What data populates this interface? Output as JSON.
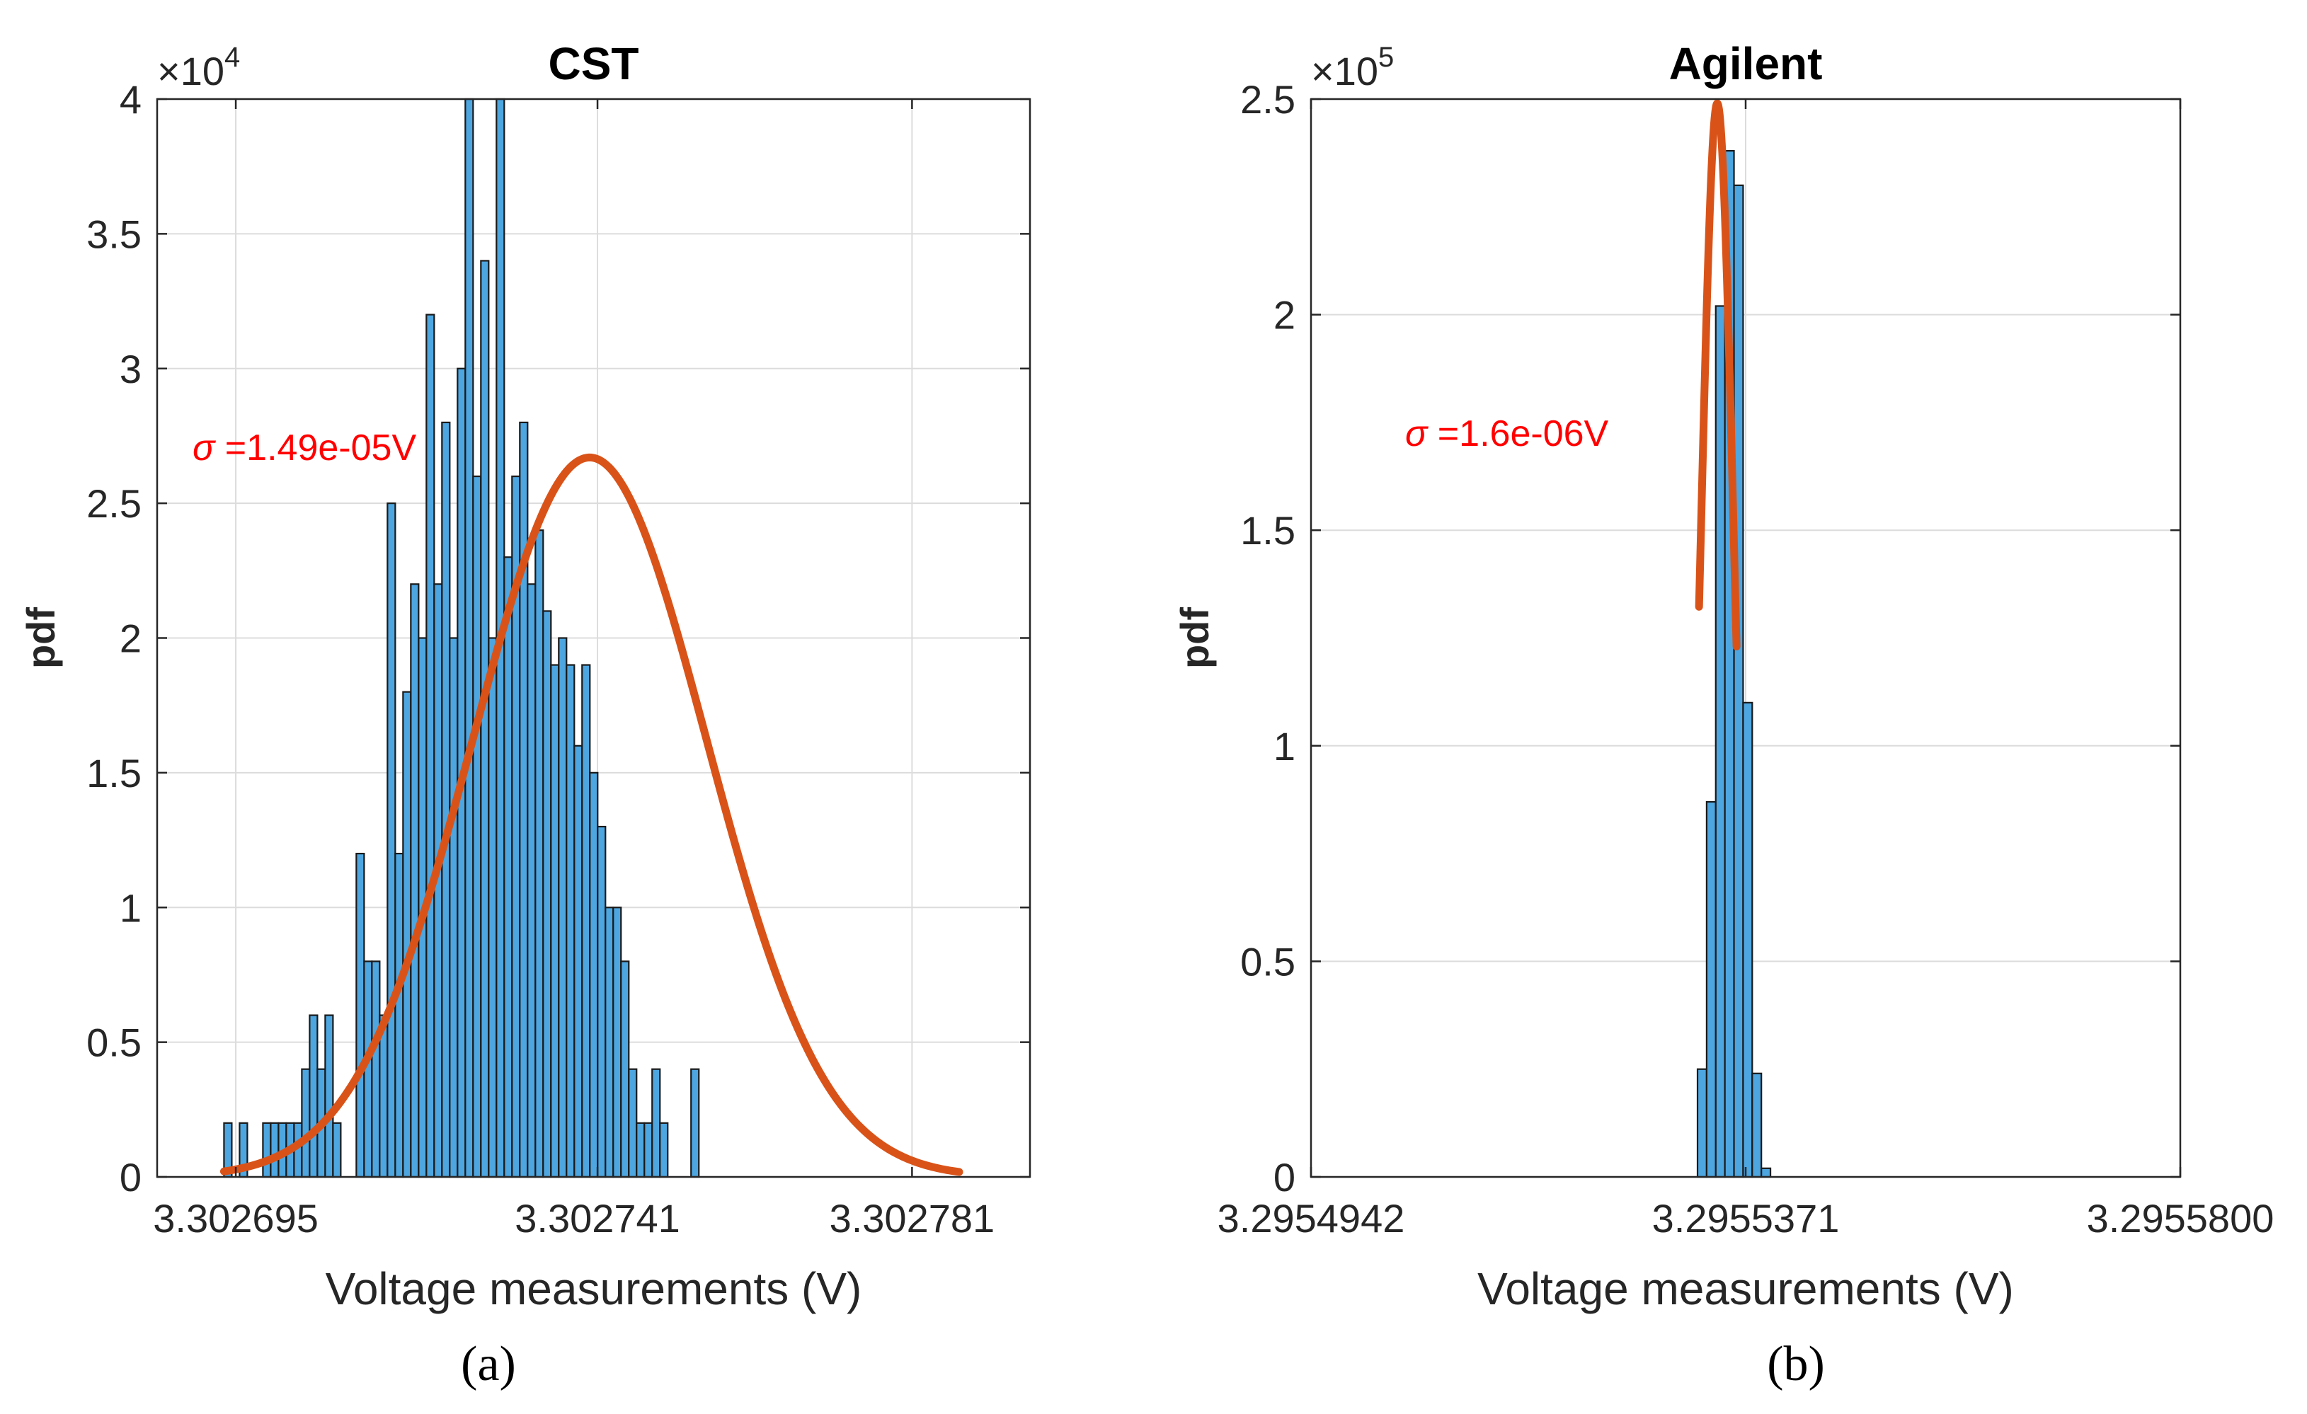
{
  "chart_data": [
    {
      "type": "bar",
      "panel_label": "(a)",
      "title": "CST",
      "xlabel": "Voltage measurements (V)",
      "ylabel": "pdf",
      "y_exponent_base": "×10",
      "y_exponent_power": "4",
      "xlim": [
        3.302685,
        3.302796
      ],
      "ylim": [
        0,
        4
      ],
      "xticks": [
        3.302695,
        3.302741,
        3.302781
      ],
      "xtick_labels": [
        "3.302695",
        "3.302741",
        "3.302781"
      ],
      "yticks": [
        0,
        0.5,
        1,
        1.5,
        2,
        2.5,
        3,
        3.5,
        4
      ],
      "ytick_labels": [
        "0",
        "0.5",
        "1",
        "1.5",
        "2",
        "2.5",
        "3",
        "3.5",
        "4"
      ],
      "grid": true,
      "bar_color": "#4DA6E0",
      "bar_edge_color": "#1A1A1A",
      "bin_start": 3.3026935,
      "bin_width": 9.9e-07,
      "bar_values": [
        0.2,
        0,
        0.2,
        0,
        0,
        0.2,
        0.2,
        0.2,
        0.2,
        0.2,
        0.4,
        0.6,
        0.4,
        0.6,
        0.2,
        0,
        0,
        1.2,
        0.8,
        0.8,
        0.6,
        2.5,
        1.2,
        1.8,
        2.2,
        2.0,
        3.2,
        2.2,
        2.8,
        2.0,
        3.0,
        4.0,
        2.6,
        3.4,
        2.0,
        4.0,
        2.3,
        2.6,
        2.8,
        2.2,
        2.4,
        2.1,
        1.9,
        2.0,
        1.9,
        1.6,
        1.9,
        1.5,
        1.3,
        1.0,
        1.0,
        0.8,
        0.4,
        0.2,
        0.2,
        0.4,
        0.2,
        0,
        0,
        0,
        0.4
      ],
      "bar_values_alt": [],
      "fit": {
        "mean": 3.30274,
        "sigma": 1.49e-05,
        "peak": 2.67,
        "x_from": 3.3026935,
        "x_to": 3.302787,
        "color": "#D95319"
      },
      "annotation": {
        "sigma_symbol": "σ",
        "text": " =1.49e-05V",
        "color": "#FF0000"
      }
    },
    {
      "type": "bar",
      "panel_label": "(b)",
      "title": "Agilent",
      "xlabel": "Voltage measurements (V)",
      "ylabel": "pdf",
      "y_exponent_base": "×10",
      "y_exponent_power": "5",
      "xlim": [
        3.2954942,
        3.29558
      ],
      "ylim": [
        0,
        2.5
      ],
      "xticks": [
        3.2954942,
        3.2955371,
        3.29558
      ],
      "xtick_labels": [
        "3.2954942",
        "3.2955371",
        "3.2955800"
      ],
      "yticks": [
        0,
        0.5,
        1,
        1.5,
        2,
        2.5
      ],
      "ytick_labels": [
        "0",
        "0.5",
        "1",
        "1.5",
        "2",
        "2.5"
      ],
      "grid": true,
      "bar_color": "#4DA6E0",
      "bar_edge_color": "#1A1A1A",
      "bin_start": 3.29553235,
      "bin_width": 9e-07,
      "bar_values": [
        0.25,
        0.87,
        2.02,
        2.38,
        2.3,
        1.1,
        0.24,
        0.02
      ],
      "fit": {
        "mean": 3.2955343,
        "sigma": 1.6e-06,
        "peak": 2.49,
        "x_from": 3.2955325,
        "x_to": 3.2955362,
        "color": "#D95319"
      },
      "annotation": {
        "sigma_symbol": "σ",
        "text": " =1.6e-06V",
        "color": "#FF0000"
      }
    }
  ]
}
